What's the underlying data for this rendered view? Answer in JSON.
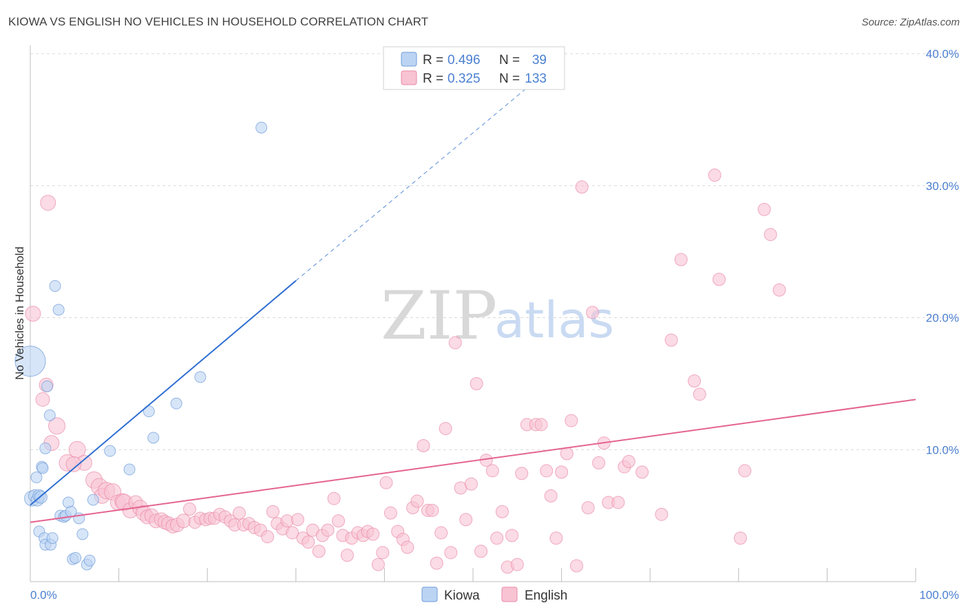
{
  "title": "KIOWA VS ENGLISH NO VEHICLES IN HOUSEHOLD CORRELATION CHART",
  "source": "Source: ZipAtlas.com",
  "watermark": {
    "zip": "ZIP",
    "atlas": "atlas"
  },
  "colors": {
    "kiowa_fill": "#bcd4f3",
    "kiowa_stroke": "#6d9bd9",
    "kiowa_line": "#2f6fd1",
    "english_fill": "#f8c3d3",
    "english_stroke": "#e98aa8",
    "english_line": "#e46390",
    "tick_text": "#4a7fd0",
    "grid": "#d9d9d9"
  },
  "legend": {
    "r_label": "R =",
    "n_label": "N =",
    "rows": [
      {
        "name": "Kiowa",
        "r": "0.496",
        "n": "39"
      },
      {
        "name": "English",
        "r": "0.325",
        "n": "133"
      }
    ]
  },
  "chart_data": {
    "type": "scatter",
    "title": "KIOWA VS ENGLISH NO VEHICLES IN HOUSEHOLD CORRELATION CHART",
    "xlabel": "",
    "ylabel": "No Vehicles in Household",
    "xlim": [
      0,
      100
    ],
    "ylim": [
      0,
      40
    ],
    "x_tick_labels": [
      "0.0%",
      "100.0%"
    ],
    "y_ticks": [
      10,
      20,
      30,
      40
    ],
    "y_tick_labels": [
      "10.0%",
      "20.0%",
      "30.0%",
      "40.0%"
    ],
    "grid": true,
    "series": [
      {
        "name": "Kiowa",
        "r": 0.496,
        "n": 39,
        "trend": {
          "x0": 0,
          "y0": 5.8,
          "x1": 30,
          "y1": 22.8,
          "dashed_to_x": 100,
          "dashed_to_y": 62
        },
        "points": [
          [
            0,
            16.7,
            22
          ],
          [
            0.2,
            6.3,
            11
          ],
          [
            0.5,
            6.5,
            9
          ],
          [
            0.8,
            6.2,
            9
          ],
          [
            1.0,
            6.5,
            9
          ],
          [
            1.2,
            6.4,
            9
          ],
          [
            0.7,
            7.9,
            8
          ],
          [
            1.3,
            8.7,
            8
          ],
          [
            1.4,
            8.6,
            8
          ],
          [
            1.7,
            10.1,
            8
          ],
          [
            1.9,
            14.8,
            8
          ],
          [
            2.2,
            12.6,
            8
          ],
          [
            2.8,
            22.4,
            8
          ],
          [
            3.2,
            20.6,
            8
          ],
          [
            1.0,
            3.8,
            8
          ],
          [
            1.6,
            3.3,
            8
          ],
          [
            1.7,
            2.8,
            8
          ],
          [
            2.3,
            2.8,
            8
          ],
          [
            2.5,
            3.3,
            8
          ],
          [
            3.4,
            5.0,
            8
          ],
          [
            3.8,
            4.9,
            8
          ],
          [
            4.0,
            5.0,
            8
          ],
          [
            4.3,
            6.0,
            8
          ],
          [
            4.6,
            5.3,
            8
          ],
          [
            4.8,
            1.7,
            8
          ],
          [
            5.1,
            1.8,
            8
          ],
          [
            5.5,
            4.8,
            8
          ],
          [
            5.9,
            3.6,
            8
          ],
          [
            6.4,
            1.3,
            8
          ],
          [
            6.7,
            1.6,
            8
          ],
          [
            7.1,
            6.2,
            8
          ],
          [
            9.0,
            9.9,
            8
          ],
          [
            11.2,
            8.5,
            8
          ],
          [
            13.4,
            12.9,
            8
          ],
          [
            13.9,
            10.9,
            8
          ],
          [
            16.5,
            13.5,
            8
          ],
          [
            19.2,
            15.5,
            8
          ],
          [
            26.1,
            34.4,
            8
          ]
        ]
      },
      {
        "name": "English",
        "r": 0.325,
        "n": 133,
        "trend": {
          "x0": 0,
          "y0": 4.5,
          "x1": 100,
          "y1": 13.8
        },
        "points": [
          [
            0.3,
            20.3,
            11
          ],
          [
            1.8,
            14.9,
            10
          ],
          [
            1.4,
            13.8,
            10
          ],
          [
            2.0,
            28.7,
            11
          ],
          [
            3.0,
            11.8,
            12
          ],
          [
            2.4,
            10.5,
            11
          ],
          [
            4.2,
            9.0,
            12
          ],
          [
            5.3,
            10.0,
            12
          ],
          [
            6.1,
            9.0,
            11
          ],
          [
            4.9,
            8.9,
            11
          ],
          [
            7.2,
            7.7,
            12
          ],
          [
            7.8,
            7.2,
            12
          ],
          [
            8.1,
            6.5,
            11
          ],
          [
            8.6,
            6.9,
            12
          ],
          [
            9.3,
            6.8,
            12
          ],
          [
            9.9,
            6.0,
            11
          ],
          [
            10.4,
            6.1,
            11
          ],
          [
            10.6,
            6.0,
            12
          ],
          [
            11.3,
            5.4,
            11
          ],
          [
            11.9,
            6.0,
            10
          ],
          [
            12.4,
            5.6,
            11
          ],
          [
            12.8,
            5.2,
            11
          ],
          [
            13.2,
            4.9,
            10
          ],
          [
            13.7,
            5.0,
            10
          ],
          [
            14.2,
            4.6,
            10
          ],
          [
            14.8,
            4.7,
            10
          ],
          [
            15.2,
            4.5,
            10
          ],
          [
            15.6,
            4.4,
            10
          ],
          [
            16.1,
            4.2,
            10
          ],
          [
            16.6,
            4.3,
            10
          ],
          [
            17.3,
            4.6,
            10
          ],
          [
            18.0,
            5.5,
            9
          ],
          [
            18.6,
            4.5,
            9
          ],
          [
            19.2,
            4.8,
            9
          ],
          [
            19.8,
            4.7,
            9
          ],
          [
            20.3,
            4.8,
            9
          ],
          [
            20.8,
            4.8,
            9
          ],
          [
            21.4,
            5.1,
            9
          ],
          [
            22.0,
            4.9,
            9
          ],
          [
            22.6,
            4.6,
            9
          ],
          [
            23.1,
            4.3,
            9
          ],
          [
            23.6,
            5.2,
            9
          ],
          [
            24.1,
            4.3,
            9
          ],
          [
            24.7,
            4.4,
            9
          ],
          [
            25.3,
            4.1,
            9
          ],
          [
            26.0,
            3.9,
            9
          ],
          [
            26.8,
            3.4,
            9
          ],
          [
            27.4,
            5.3,
            9
          ],
          [
            27.9,
            4.4,
            9
          ],
          [
            28.5,
            4.0,
            9
          ],
          [
            29.0,
            4.6,
            9
          ],
          [
            29.6,
            3.7,
            9
          ],
          [
            30.2,
            4.7,
            9
          ],
          [
            30.8,
            3.3,
            9
          ],
          [
            31.4,
            3.0,
            9
          ],
          [
            31.9,
            3.9,
            9
          ],
          [
            32.6,
            2.3,
            9
          ],
          [
            33.0,
            3.5,
            9
          ],
          [
            33.6,
            3.9,
            9
          ],
          [
            34.3,
            6.3,
            9
          ],
          [
            34.8,
            4.6,
            9
          ],
          [
            35.3,
            3.5,
            9
          ],
          [
            35.8,
            2.0,
            9
          ],
          [
            36.3,
            3.3,
            9
          ],
          [
            37.0,
            3.7,
            9
          ],
          [
            37.6,
            3.5,
            9
          ],
          [
            38.1,
            3.8,
            9
          ],
          [
            38.7,
            3.6,
            9
          ],
          [
            39.3,
            1.3,
            9
          ],
          [
            39.8,
            2.2,
            9
          ],
          [
            40.2,
            7.5,
            9
          ],
          [
            40.7,
            5.2,
            9
          ],
          [
            41.5,
            3.8,
            9
          ],
          [
            42.1,
            3.2,
            9
          ],
          [
            42.6,
            2.6,
            9
          ],
          [
            43.2,
            5.6,
            9
          ],
          [
            43.7,
            6.1,
            9
          ],
          [
            44.4,
            10.3,
            9
          ],
          [
            44.9,
            5.4,
            9
          ],
          [
            45.4,
            5.4,
            9
          ],
          [
            45.9,
            1.4,
            9
          ],
          [
            46.4,
            3.7,
            9
          ],
          [
            46.9,
            11.6,
            9
          ],
          [
            47.5,
            2.2,
            9
          ],
          [
            48.0,
            18.1,
            9
          ],
          [
            48.6,
            7.1,
            9
          ],
          [
            49.2,
            4.7,
            9
          ],
          [
            49.8,
            7.4,
            9
          ],
          [
            50.4,
            15.0,
            9
          ],
          [
            50.9,
            2.3,
            9
          ],
          [
            51.5,
            9.2,
            9
          ],
          [
            52.2,
            8.4,
            9
          ],
          [
            52.7,
            3.3,
            9
          ],
          [
            53.3,
            5.3,
            9
          ],
          [
            53.9,
            1.1,
            9
          ],
          [
            54.4,
            3.5,
            9
          ],
          [
            55.0,
            1.3,
            9
          ],
          [
            55.5,
            8.2,
            9
          ],
          [
            56.1,
            11.9,
            9
          ],
          [
            57.1,
            11.9,
            9
          ],
          [
            57.7,
            11.9,
            9
          ],
          [
            58.3,
            8.4,
            9
          ],
          [
            58.8,
            6.5,
            9
          ],
          [
            59.4,
            3.3,
            9
          ],
          [
            60.0,
            8.3,
            9
          ],
          [
            60.6,
            9.7,
            9
          ],
          [
            61.1,
            12.2,
            9
          ],
          [
            61.7,
            1.2,
            9
          ],
          [
            62.3,
            29.9,
            9
          ],
          [
            63.0,
            5.6,
            9
          ],
          [
            63.5,
            20.4,
            9
          ],
          [
            64.2,
            9.0,
            9
          ],
          [
            64.8,
            10.5,
            9
          ],
          [
            65.3,
            6.0,
            9
          ],
          [
            66.4,
            6.0,
            9
          ],
          [
            67.1,
            8.7,
            9
          ],
          [
            67.6,
            9.1,
            9
          ],
          [
            69.1,
            8.3,
            9
          ],
          [
            71.3,
            5.1,
            9
          ],
          [
            72.4,
            18.3,
            9
          ],
          [
            73.5,
            24.4,
            9
          ],
          [
            75.0,
            15.2,
            9
          ],
          [
            75.6,
            14.2,
            9
          ],
          [
            77.3,
            30.8,
            9
          ],
          [
            77.8,
            22.9,
            9
          ],
          [
            80.2,
            3.3,
            9
          ],
          [
            80.7,
            8.4,
            9
          ],
          [
            82.9,
            28.2,
            9
          ],
          [
            83.6,
            26.3,
            9
          ],
          [
            84.6,
            22.1,
            9
          ]
        ]
      }
    ]
  }
}
